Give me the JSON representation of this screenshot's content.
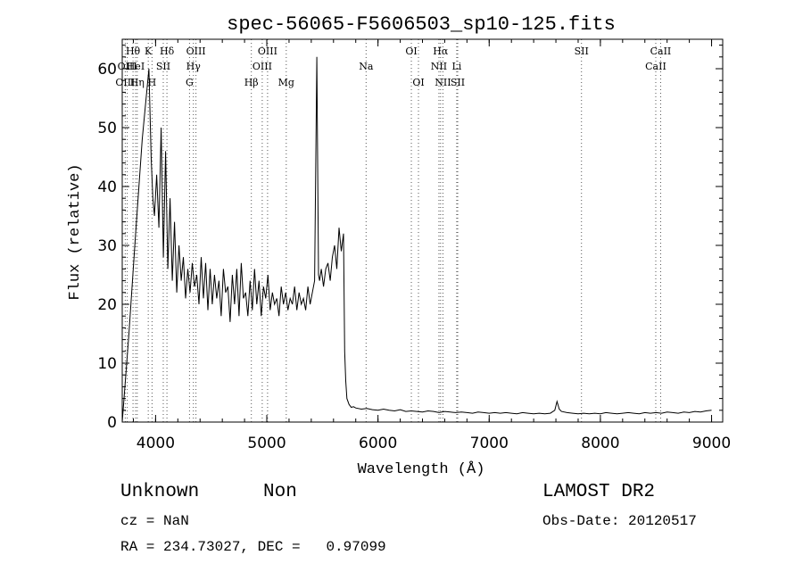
{
  "chart_data": {
    "type": "line",
    "title": "spec-56065-F5606503_sp10-125.fits",
    "xlabel": "Wavelength (Å)",
    "ylabel": "Flux (relative)",
    "xlim": [
      3700,
      9100
    ],
    "ylim": [
      0,
      65
    ],
    "xticks": [
      4000,
      5000,
      6000,
      7000,
      8000,
      9000
    ],
    "yticks": [
      0,
      10,
      20,
      30,
      40,
      50,
      60
    ],
    "grid": false,
    "line_color": "#000000",
    "marker_color": "#555555",
    "x": [
      3700,
      3760,
      3820,
      3880,
      3940,
      3960,
      3975,
      3990,
      4010,
      4030,
      4050,
      4070,
      4090,
      4110,
      4130,
      4150,
      4170,
      4190,
      4210,
      4230,
      4250,
      4270,
      4290,
      4310,
      4330,
      4350,
      4370,
      4390,
      4410,
      4430,
      4450,
      4470,
      4490,
      4510,
      4530,
      4550,
      4570,
      4590,
      4610,
      4630,
      4650,
      4670,
      4690,
      4710,
      4730,
      4750,
      4770,
      4790,
      4810,
      4830,
      4850,
      4870,
      4890,
      4910,
      4930,
      4950,
      4970,
      4990,
      5010,
      5030,
      5050,
      5070,
      5090,
      5110,
      5130,
      5150,
      5170,
      5190,
      5210,
      5230,
      5250,
      5270,
      5290,
      5310,
      5330,
      5350,
      5370,
      5390,
      5410,
      5430,
      5450,
      5465,
      5475,
      5490,
      5510,
      5530,
      5550,
      5570,
      5590,
      5610,
      5630,
      5650,
      5670,
      5690,
      5700,
      5710,
      5720,
      5740,
      5760,
      5780,
      5800,
      5850,
      5900,
      5950,
      6000,
      6050,
      6100,
      6150,
      6200,
      6250,
      6300,
      6350,
      6400,
      6450,
      6500,
      6550,
      6600,
      6650,
      6700,
      6750,
      6800,
      6850,
      6900,
      6950,
      7000,
      7050,
      7100,
      7150,
      7200,
      7250,
      7300,
      7350,
      7400,
      7450,
      7500,
      7550,
      7590,
      7610,
      7630,
      7650,
      7700,
      7750,
      7800,
      7850,
      7900,
      7950,
      8000,
      8050,
      8100,
      8150,
      8200,
      8250,
      8300,
      8350,
      8400,
      8450,
      8500,
      8550,
      8600,
      8650,
      8700,
      8750,
      8800,
      8850,
      8900,
      8950,
      9000
    ],
    "values": [
      0,
      15,
      32,
      48,
      60,
      45,
      38,
      35,
      42,
      33,
      50,
      28,
      46,
      26,
      38,
      24,
      34,
      22,
      30,
      24,
      28,
      21,
      26,
      22,
      27,
      23,
      25,
      20,
      28,
      21,
      27,
      19,
      26,
      20,
      25,
      21,
      24,
      18,
      26,
      22,
      23,
      17,
      25,
      20,
      26,
      18,
      27,
      21,
      22,
      18,
      24,
      19,
      26,
      20,
      24,
      18,
      23,
      21,
      25,
      19,
      22,
      20,
      21,
      18,
      23,
      20,
      22,
      19,
      21,
      20,
      23,
      19,
      22,
      20,
      21,
      19,
      23,
      20,
      22,
      24,
      62,
      25,
      24,
      26,
      23,
      26,
      27,
      24,
      28,
      30,
      26,
      33,
      29,
      32,
      12,
      7,
      4,
      3,
      2.5,
      2.6,
      2.4,
      2.2,
      2.3,
      2.1,
      2.0,
      2.2,
      2.0,
      1.9,
      2.1,
      1.8,
      1.9,
      1.8,
      1.7,
      1.9,
      1.8,
      1.6,
      1.8,
      1.7,
      1.6,
      1.7,
      1.6,
      1.5,
      1.7,
      1.6,
      1.5,
      1.6,
      1.5,
      1.6,
      1.5,
      1.4,
      1.6,
      1.5,
      1.4,
      1.5,
      1.4,
      1.5,
      2.0,
      3.5,
      2.2,
      1.8,
      1.6,
      1.5,
      1.4,
      1.5,
      1.4,
      1.5,
      1.4,
      1.6,
      1.5,
      1.4,
      1.5,
      1.6,
      1.5,
      1.4,
      1.6,
      1.5,
      1.6,
      1.5,
      1.7,
      1.6,
      1.5,
      1.7,
      1.6,
      1.8,
      1.7,
      1.9,
      2.0
    ],
    "lines": [
      {
        "label": "Hθ",
        "x": 3797,
        "row": 1
      },
      {
        "label": "OIII",
        "x": 3727,
        "row": 3
      },
      {
        "label": "OIII",
        "x": 3745,
        "row": 2
      },
      {
        "label": "Hη",
        "x": 3835,
        "row": 3
      },
      {
        "label": "HeI",
        "x": 3820,
        "row": 2
      },
      {
        "label": "K",
        "x": 3934,
        "row": 1
      },
      {
        "label": "H",
        "x": 3968,
        "row": 3
      },
      {
        "label": "SII",
        "x": 4069,
        "row": 2
      },
      {
        "label": "Hδ",
        "x": 4102,
        "row": 1
      },
      {
        "label": "OIII",
        "x": 4363,
        "row": 1
      },
      {
        "label": "Hγ",
        "x": 4340,
        "row": 2
      },
      {
        "label": "G",
        "x": 4305,
        "row": 3
      },
      {
        "label": "Hβ",
        "x": 4861,
        "row": 3
      },
      {
        "label": "OIII",
        "x": 5007,
        "row": 1
      },
      {
        "label": "OIII",
        "x": 4959,
        "row": 2
      },
      {
        "label": "Mg",
        "x": 5175,
        "row": 3
      },
      {
        "label": "Na",
        "x": 5893,
        "row": 2
      },
      {
        "label": "OI",
        "x": 6300,
        "row": 1
      },
      {
        "label": "OI",
        "x": 6364,
        "row": 3
      },
      {
        "label": "Hα",
        "x": 6563,
        "row": 1
      },
      {
        "label": "NII",
        "x": 6548,
        "row": 2
      },
      {
        "label": "NII",
        "x": 6584,
        "row": 3
      },
      {
        "label": "Li",
        "x": 6708,
        "row": 2
      },
      {
        "label": "SII",
        "x": 6717,
        "row": 3
      },
      {
        "label": "SII",
        "x": 7830,
        "row": 1
      },
      {
        "label": "CaII",
        "x": 8542,
        "row": 1
      },
      {
        "label": "CaII",
        "x": 8498,
        "row": 2
      }
    ]
  },
  "info": {
    "class": "Unknown",
    "subclass": "Non",
    "survey": "LAMOST DR2",
    "cz": "cz = NaN",
    "obs_date": "Obs-Date: 20120517",
    "radec": "RA = 234.73027, DEC =   0.97099"
  }
}
